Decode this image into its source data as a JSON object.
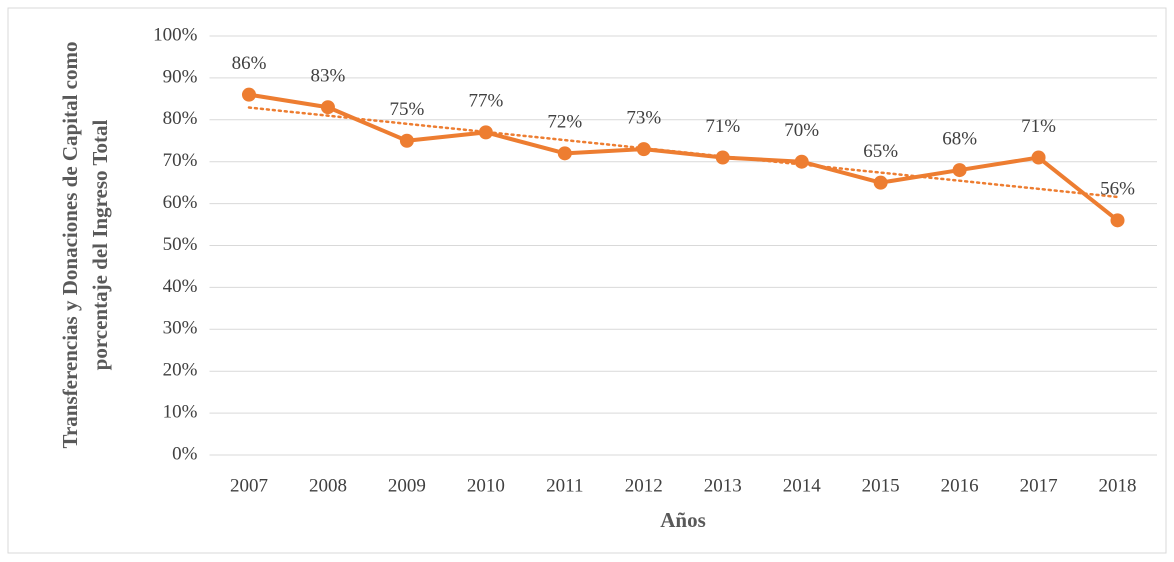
{
  "chart_data": {
    "type": "line",
    "x_label": "Años",
    "y_label": "Transferencias y Donaciones de Capital como porcentaje del Ingreso Total",
    "categories": [
      "2007",
      "2008",
      "2009",
      "2010",
      "2011",
      "2012",
      "2013",
      "2014",
      "2015",
      "2016",
      "2017",
      "2018"
    ],
    "values": [
      86,
      83,
      75,
      77,
      72,
      73,
      71,
      70,
      65,
      68,
      71,
      56
    ],
    "value_labels": [
      "86%",
      "83%",
      "75%",
      "77%",
      "72%",
      "73%",
      "71%",
      "70%",
      "65%",
      "68%",
      "71%",
      "56%"
    ],
    "color": "#ed7d31",
    "trendline": "linear",
    "ylim": [
      0,
      100
    ],
    "yticks": [
      {
        "value": 0,
        "label": "0%"
      },
      {
        "value": 10,
        "label": "10%"
      },
      {
        "value": 20,
        "label": "20%"
      },
      {
        "value": 30,
        "label": "30%"
      },
      {
        "value": 40,
        "label": "40%"
      },
      {
        "value": 50,
        "label": "50%"
      },
      {
        "value": 60,
        "label": "60%"
      },
      {
        "value": 70,
        "label": "70%"
      },
      {
        "value": 80,
        "label": "80%"
      },
      {
        "value": 90,
        "label": "90%"
      },
      {
        "value": 100,
        "label": "100%"
      }
    ],
    "grid": true
  }
}
